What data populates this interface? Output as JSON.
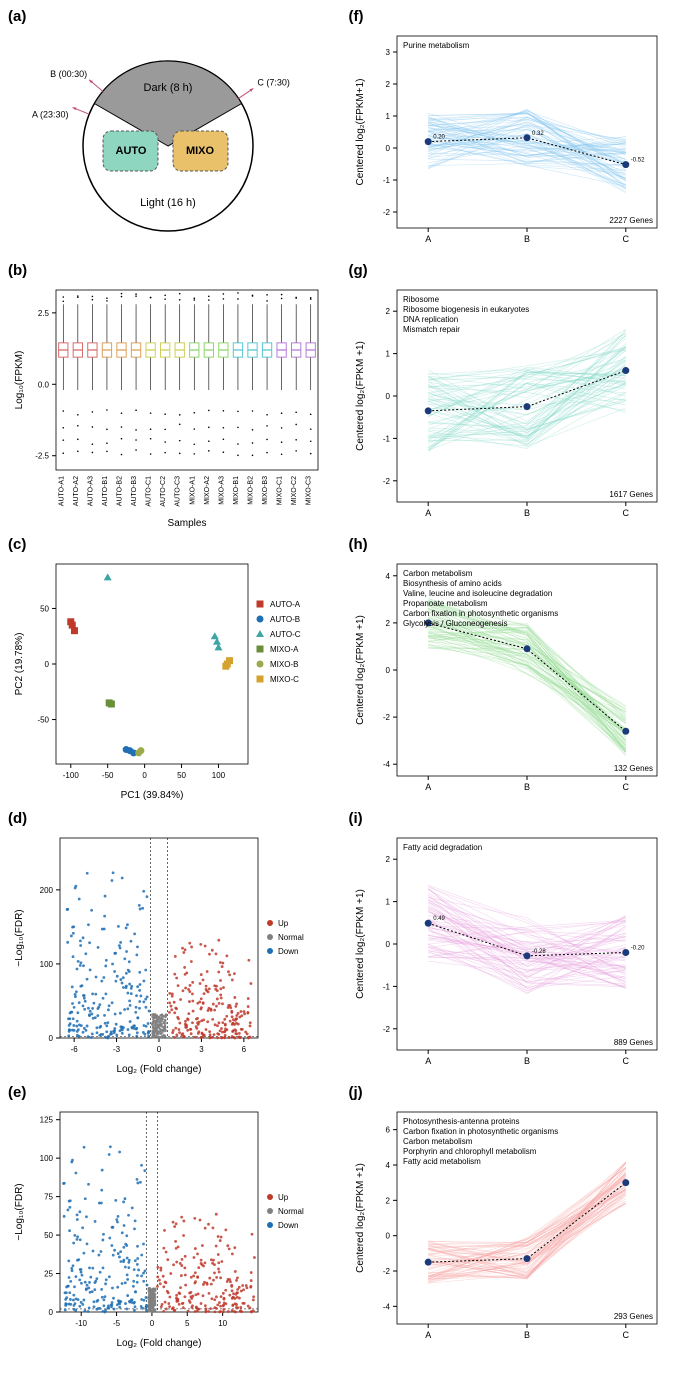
{
  "panels": {
    "a": {
      "label": "(a)",
      "dark_label": "Dark (8 h)",
      "light_label": "Light (16 h)",
      "auto_label": "AUTO",
      "mixo_label": "MIXO",
      "pointA": "A (23:30)",
      "pointB": "B (00:30)",
      "pointC": "C (7:30)",
      "auto_color": "#8fd6c0",
      "mixo_color": "#e8c16a",
      "dark_color": "#9a9a9a",
      "circle_stroke": "#000000"
    },
    "b": {
      "label": "(b)",
      "ylabel": "Log₁₀(FPKM)",
      "xlabel": "Samples",
      "yticks": [
        -2.5,
        0.0,
        2.5
      ],
      "samples": [
        "AUTO-A1",
        "AUTO-A2",
        "AUTO-A3",
        "AUTO-B1",
        "AUTO-B2",
        "AUTO-B3",
        "AUTO-C1",
        "AUTO-C2",
        "AUTO-C3",
        "MIXO-A1",
        "MIXO-A2",
        "MIXO-A3",
        "MIXO-B1",
        "MIXO-B2",
        "MIXO-B3",
        "MIXO-C1",
        "MIXO-C2",
        "MIXO-C3"
      ],
      "box_colors": [
        "#d96c6c",
        "#d96c6c",
        "#d96c6c",
        "#e0a05a",
        "#e0a05a",
        "#e0a05a",
        "#cfcf5a",
        "#cfcf5a",
        "#cfcf5a",
        "#8fd66c",
        "#8fd66c",
        "#8fd66c",
        "#5ac7cf",
        "#5ac7cf",
        "#5ac7cf",
        "#b77dd9",
        "#b77dd9",
        "#b77dd9"
      ],
      "median": 1.2,
      "q1": 0.95,
      "q3": 1.45,
      "wlo": -0.2,
      "whi": 2.8,
      "outliers_lo": [
        -1.0,
        -1.5,
        -2.0,
        -2.4
      ],
      "outliers_hi": [
        3.0,
        3.1
      ]
    },
    "c": {
      "label": "(c)",
      "xlabel": "PC1 (39.84%)",
      "ylabel": "PC2 (19.78%)",
      "xlim": [
        -120,
        140
      ],
      "ylim": [
        -90,
        90
      ],
      "xticks": [
        -100,
        -50,
        0,
        50,
        100
      ],
      "yticks": [
        -50,
        0,
        50
      ],
      "groups": [
        {
          "name": "AUTO-A",
          "color": "#c0392b",
          "marker": "square",
          "points": [
            [
              -100,
              38
            ],
            [
              -95,
              30
            ],
            [
              -98,
              35
            ]
          ]
        },
        {
          "name": "AUTO-B",
          "color": "#1f6fb4",
          "marker": "circle",
          "points": [
            [
              -20,
              -78
            ],
            [
              -15,
              -80
            ],
            [
              -25,
              -77
            ]
          ]
        },
        {
          "name": "AUTO-C",
          "color": "#3ea5a5",
          "marker": "triangle",
          "points": [
            [
              95,
              25
            ],
            [
              100,
              15
            ],
            [
              98,
              20
            ],
            [
              -50,
              78
            ]
          ]
        },
        {
          "name": "MIXO-A",
          "color": "#6a8f3a",
          "marker": "square",
          "points": [
            [
              -48,
              -35
            ],
            [
              -45,
              -36
            ]
          ]
        },
        {
          "name": "MIXO-B",
          "color": "#9aa94a",
          "marker": "circle",
          "points": [
            [
              -8,
              -80
            ],
            [
              -5,
              -78
            ]
          ]
        },
        {
          "name": "MIXO-C",
          "color": "#d4a22e",
          "marker": "square",
          "points": [
            [
              110,
              -2
            ],
            [
              115,
              3
            ],
            [
              112,
              0
            ]
          ]
        }
      ]
    },
    "d": {
      "label": "(d)",
      "xlabel": "Log₂ (Fold change)",
      "ylabel": "−Log₁₀(FDR)",
      "xlim": [
        -7,
        7
      ],
      "ylim": [
        0,
        270
      ],
      "xticks": [
        -6,
        -3,
        0,
        3,
        6
      ],
      "yticks": [
        0,
        100,
        200
      ],
      "up_color": "#c0392b",
      "down_color": "#1f6fb4",
      "normal_color": "#808080",
      "legend": [
        "Up",
        "Normal",
        "Down"
      ],
      "vlines": [
        -0.6,
        0.6
      ]
    },
    "e": {
      "label": "(e)",
      "xlabel": "Log₂ (Fold change)",
      "ylabel": "−Log₁₀(FDR)",
      "xlim": [
        -13,
        15
      ],
      "ylim": [
        0,
        130
      ],
      "xticks": [
        -10,
        -5,
        0,
        5,
        10
      ],
      "yticks": [
        0,
        25,
        50,
        75,
        100,
        125
      ],
      "up_color": "#c0392b",
      "down_color": "#1f6fb4",
      "normal_color": "#808080",
      "legend": [
        "Up",
        "Normal",
        "Down"
      ],
      "vlines": [
        -0.8,
        0.8
      ]
    },
    "f": {
      "label": "(f)",
      "ylabel": "Centered log₂(FPKM+1)",
      "ylim": [
        -2.5,
        3.5
      ],
      "yticks": [
        -2,
        -1,
        0,
        1,
        2,
        3
      ],
      "xcats": [
        "A",
        "B",
        "C"
      ],
      "pathways": [
        "Purine metabolism"
      ],
      "gene_count": "2227 Genes",
      "line_color": "#7fc4ef",
      "mean": [
        0.2,
        0.32,
        -0.52
      ],
      "mean_labels": [
        "0.20",
        "0.32",
        "-0.52"
      ],
      "spread": 0.9
    },
    "g": {
      "label": "(g)",
      "ylabel": "Centered log₂(FPKM +1)",
      "ylim": [
        -2.5,
        2.5
      ],
      "yticks": [
        -2,
        -1,
        0,
        1,
        2
      ],
      "xcats": [
        "A",
        "B",
        "C"
      ],
      "pathways": [
        "Ribosome",
        "Ribosome biogenesis in eukaryotes",
        "DNA replication",
        "Mismatch repair"
      ],
      "gene_count": "1617 Genes",
      "line_color": "#7fd6c7",
      "mean": [
        -0.35,
        -0.25,
        0.6
      ],
      "mean_labels": [],
      "spread": 1.0
    },
    "h": {
      "label": "(h)",
      "ylabel": "Centered log₂(FPKM +1)",
      "ylim": [
        -4.5,
        4.5
      ],
      "yticks": [
        -4,
        -2,
        0,
        2,
        4
      ],
      "xcats": [
        "A",
        "B",
        "C"
      ],
      "pathways": [
        "Carbon metabolism",
        "Biosynthesis of amino acids",
        "Valine, leucine and isoleucine degradation",
        "Propanoate metabolism",
        "Carbon fixation in photosynthetic organisms",
        "Glycolysis / Gluconeogenesis"
      ],
      "gene_count": "132 Genes",
      "line_color": "#8fd98f",
      "mean": [
        2.0,
        0.9,
        -2.6
      ],
      "mean_labels": [],
      "spread": 1.1
    },
    "i": {
      "label": "(i)",
      "ylabel": "Centered log₂(FPKM +1)",
      "ylim": [
        -2.5,
        2.5
      ],
      "yticks": [
        -2,
        -1,
        0,
        1,
        2
      ],
      "xcats": [
        "A",
        "B",
        "C"
      ],
      "pathways": [
        "Fatty acid degradation"
      ],
      "gene_count": "889 Genes",
      "line_color": "#e59add",
      "line_color_hex": "#e59add",
      "mean": [
        0.49,
        -0.28,
        -0.2
      ],
      "mean_labels": [
        "0.49",
        "-0.28",
        "-0.20"
      ],
      "spread": 0.9
    },
    "j": {
      "label": "(j)",
      "ylabel": "Centered log₂(FPKM +1)",
      "ylim": [
        -5,
        7
      ],
      "yticks": [
        -4,
        -2,
        0,
        2,
        4,
        6
      ],
      "xcats": [
        "A",
        "B",
        "C"
      ],
      "pathways": [
        "Photosynthesis-antenna proteins",
        "Carbon fixation in photosynthetic organisms",
        "Carbon metabolism",
        "Porphyrin and chlorophyll metabolism",
        "Fatty acid metabolism"
      ],
      "gene_count": "293 Genes",
      "line_color": "#f5a3a3",
      "mean": [
        -1.5,
        -1.3,
        3.0
      ],
      "mean_labels": [],
      "spread": 1.2
    }
  }
}
